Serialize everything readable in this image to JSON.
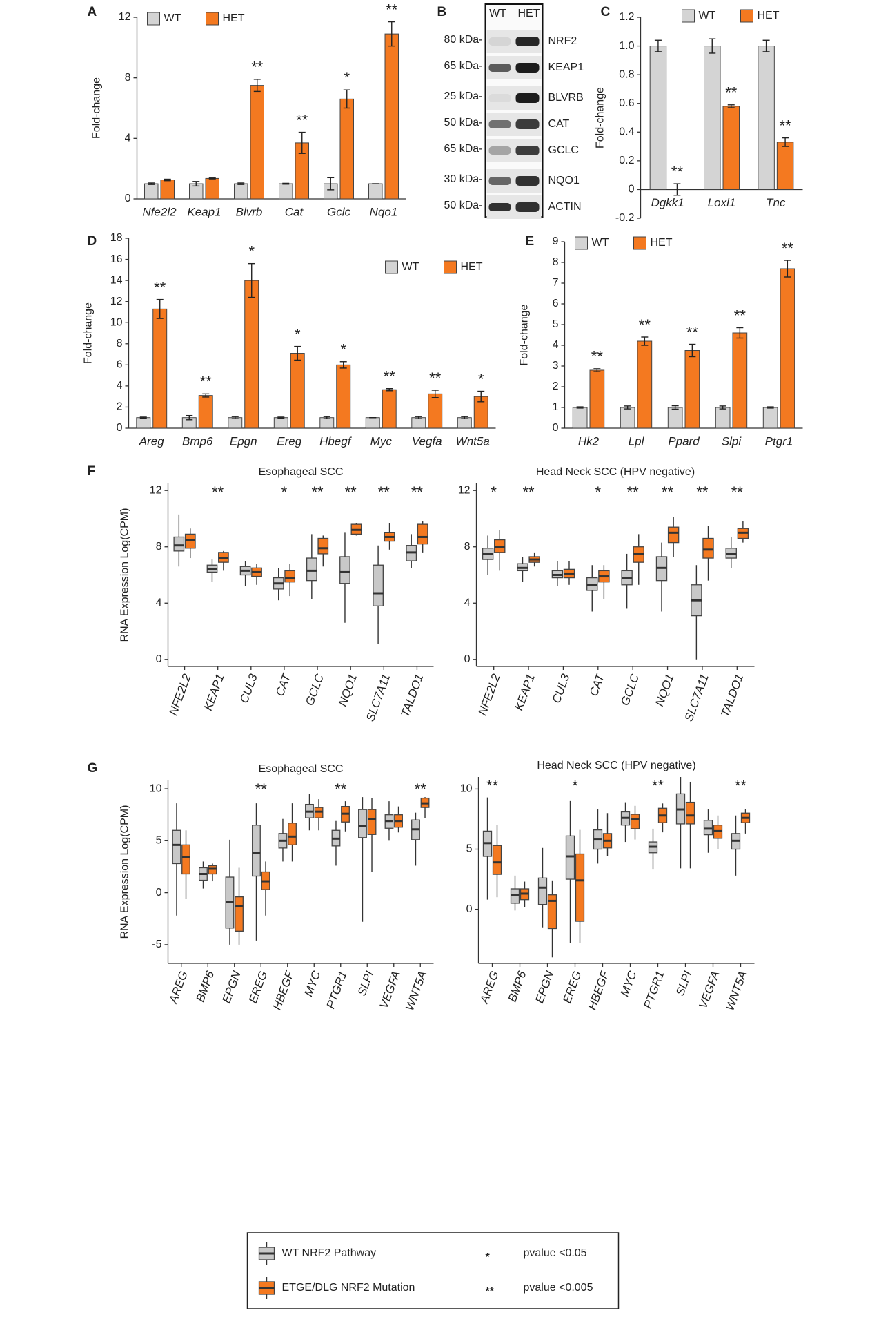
{
  "chart_data": [
    {
      "type": "bar",
      "panel": "A",
      "ylabel": "Fold-change",
      "legend": "top-left",
      "categories": [
        "Nfe2l2",
        "Keap1",
        "Blvrb",
        "Cat",
        "Gclc",
        "Nqo1"
      ],
      "series": [
        {
          "name": "WT",
          "color": "#d4d4d4",
          "values": [
            1,
            1,
            1,
            1,
            1,
            1
          ],
          "errors": [
            0.05,
            0.15,
            0.05,
            0.03,
            0.4,
            0
          ]
        },
        {
          "name": "HET",
          "color": "#f47920",
          "values": [
            1.25,
            1.35,
            7.5,
            3.7,
            6.6,
            10.9
          ],
          "errors": [
            0.05,
            0.03,
            0.4,
            0.7,
            0.6,
            0.8
          ]
        }
      ],
      "annotations": [
        null,
        null,
        "**",
        "**",
        "*",
        "**"
      ],
      "ylim": [
        0,
        12
      ],
      "yticks": [
        0,
        4,
        8,
        12
      ]
    },
    {
      "type": "bar",
      "panel": "C",
      "ylabel": "Fold-change",
      "legend": "top",
      "categories": [
        "Dgkk1",
        "Loxl1",
        "Tnc"
      ],
      "series": [
        {
          "name": "WT",
          "color": "#d4d4d4",
          "values": [
            1,
            1,
            1
          ],
          "errors": [
            0.04,
            0.05,
            0.04
          ]
        },
        {
          "name": "HET",
          "color": "#f47920",
          "values": [
            0,
            0.58,
            0.33
          ],
          "errors": [
            0.04,
            0.01,
            0.03
          ]
        }
      ],
      "annotations": [
        "**",
        "**",
        "**"
      ],
      "ylim": [
        -0.2,
        1.2
      ],
      "yticks": [
        -0.2,
        0,
        0.2,
        0.4,
        0.6,
        0.8,
        {
          "value": 1,
          "label": "1.0"
        },
        1.2
      ]
    },
    {
      "type": "bar",
      "panel": "D",
      "ylabel": "Fold-change",
      "legend": "top-right",
      "categories": [
        "Areg",
        "Bmp6",
        "Epgn",
        "Ereg",
        "Hbegf",
        "Myc",
        "Vegfa",
        "Wnt5a"
      ],
      "series": [
        {
          "name": "WT",
          "color": "#d4d4d4",
          "values": [
            1,
            1,
            1,
            1,
            1,
            1,
            1,
            1
          ],
          "errors": [
            0.05,
            0.2,
            0.1,
            0.05,
            0.1,
            0,
            0.1,
            0.1
          ]
        },
        {
          "name": "HET",
          "color": "#f47920",
          "values": [
            11.3,
            3.1,
            14,
            7.1,
            6,
            3.65,
            3.25,
            3
          ],
          "errors": [
            0.9,
            0.15,
            1.6,
            0.65,
            0.3,
            0.1,
            0.35,
            0.5
          ]
        }
      ],
      "annotations": [
        "**",
        "**",
        "*",
        "*",
        "*",
        "**",
        "**",
        "*"
      ],
      "ylim": [
        0,
        18
      ],
      "yticks": [
        0,
        2,
        4,
        6,
        8,
        10,
        12,
        14,
        16,
        18
      ]
    },
    {
      "type": "bar",
      "panel": "E",
      "ylabel": "Fold-change",
      "legend": "top-left",
      "categories": [
        "Hk2",
        "Lpl",
        "Ppard",
        "Slpi",
        "Ptgr1"
      ],
      "series": [
        {
          "name": "WT",
          "color": "#d4d4d4",
          "values": [
            1,
            1,
            1,
            1,
            1
          ],
          "errors": [
            0.03,
            0.07,
            0.08,
            0.07,
            0.03
          ]
        },
        {
          "name": "HET",
          "color": "#f47920",
          "values": [
            2.8,
            4.2,
            3.75,
            4.6,
            7.7
          ],
          "errors": [
            0.07,
            0.2,
            0.3,
            0.25,
            0.4
          ]
        }
      ],
      "annotations": [
        "**",
        "**",
        "**",
        "**",
        "**"
      ],
      "ylim": [
        0,
        9
      ],
      "yticks": [
        0,
        1,
        2,
        3,
        4,
        5,
        6,
        7,
        8,
        9
      ]
    },
    {
      "type": "box",
      "panel": "F",
      "title": "Esophageal SCC",
      "ylabel": "RNA Expression Log(CPM)",
      "categories": [
        "NFE2L2",
        "KEAP1",
        "CUL3",
        "CAT",
        "GCLC",
        "NQO1",
        "SLC7A11",
        "TALDO1"
      ],
      "series": [
        {
          "color": "#c8c8c8",
          "min": [
            6.6,
            5.5,
            5.2,
            4.2,
            4.3,
            2.6,
            1.1,
            6.5
          ],
          "q1": [
            7.7,
            6.2,
            6.0,
            5.0,
            5.6,
            5.4,
            3.8,
            7.0
          ],
          "median": [
            8.1,
            6.4,
            6.3,
            5.4,
            6.3,
            6.2,
            4.7,
            7.6
          ],
          "q3": [
            8.7,
            6.7,
            6.6,
            5.8,
            7.2,
            7.3,
            6.7,
            8.1
          ],
          "max": [
            10.3,
            7.1,
            7.0,
            6.5,
            8.9,
            9.0,
            8.1,
            8.9
          ]
        },
        {
          "color": "#f47920",
          "min": [
            7.2,
            6.3,
            5.3,
            4.5,
            6.6,
            8.8,
            7.8,
            7.6
          ],
          "q1": [
            7.9,
            6.9,
            5.9,
            5.5,
            7.5,
            8.9,
            8.4,
            8.2
          ],
          "median": [
            8.5,
            7.2,
            6.2,
            5.8,
            7.9,
            9.2,
            8.7,
            8.7
          ],
          "q3": [
            8.9,
            7.6,
            6.5,
            6.3,
            8.6,
            9.6,
            9.0,
            9.6
          ],
          "max": [
            9.3,
            7.7,
            6.8,
            6.8,
            8.8,
            9.7,
            9.7,
            9.8
          ]
        }
      ],
      "annotations": [
        null,
        "**",
        null,
        "*",
        "**",
        "**",
        "**",
        "**"
      ],
      "ylim": [
        -0.5,
        12.5
      ],
      "yticks": [
        0,
        4,
        8,
        12
      ]
    },
    {
      "type": "box",
      "title": "Head Neck SCC (HPV negative)",
      "categories": [
        "NFE2L2",
        "KEAP1",
        "CUL3",
        "CAT",
        "GCLC",
        "NQO1",
        "SLC7A11",
        "TALDO1"
      ],
      "series": [
        {
          "color": "#c8c8c8",
          "min": [
            6.0,
            5.5,
            5.2,
            3.4,
            3.6,
            3.4,
            0.0,
            6.5
          ],
          "q1": [
            7.1,
            6.3,
            5.8,
            4.9,
            5.3,
            5.6,
            3.1,
            7.2
          ],
          "median": [
            7.5,
            6.5,
            6.0,
            5.3,
            5.8,
            6.5,
            4.2,
            7.5
          ],
          "q3": [
            7.9,
            6.8,
            6.3,
            5.8,
            6.3,
            7.3,
            5.3,
            7.9
          ],
          "max": [
            8.8,
            7.3,
            7.0,
            6.7,
            7.5,
            8.3,
            6.7,
            8.7
          ]
        },
        {
          "color": "#f47920",
          "min": [
            6.3,
            6.6,
            5.3,
            4.3,
            5.3,
            7.3,
            5.6,
            8.3
          ],
          "q1": [
            7.6,
            6.9,
            5.8,
            5.5,
            6.9,
            8.3,
            7.2,
            8.6
          ],
          "median": [
            8.0,
            7.1,
            6.1,
            5.9,
            7.5,
            9.0,
            7.8,
            9.0
          ],
          "q3": [
            8.5,
            7.3,
            6.4,
            6.3,
            8.0,
            9.4,
            8.6,
            9.3
          ],
          "max": [
            9.2,
            7.6,
            7.0,
            6.7,
            8.9,
            10.1,
            9.5,
            9.8
          ]
        }
      ],
      "annotations": [
        "*",
        "**",
        null,
        "*",
        "**",
        "**",
        "**",
        "**"
      ],
      "ylim": [
        -0.5,
        12.5
      ],
      "yticks": [
        0,
        4,
        8,
        12
      ]
    },
    {
      "type": "box",
      "panel": "G",
      "title": "Esophageal SCC",
      "ylabel": "RNA Expression Log(CPM)",
      "categories": [
        "AREG",
        "BMP6",
        "EPGN",
        "EREG",
        "HBEGF",
        "MYC",
        "PTGR1",
        "SLPI",
        "VEGFA",
        "WNT5A"
      ],
      "series": [
        {
          "color": "#c8c8c8",
          "min": [
            -2.2,
            0.4,
            -5.0,
            -4.6,
            3.0,
            6.0,
            2.6,
            -2.8,
            5.0,
            2.6
          ],
          "q1": [
            2.8,
            1.2,
            -3.4,
            1.6,
            4.3,
            7.2,
            4.5,
            5.3,
            6.2,
            5.1
          ],
          "median": [
            4.6,
            1.8,
            -0.9,
            3.8,
            5.0,
            7.8,
            5.2,
            6.4,
            6.9,
            6.1
          ],
          "q3": [
            6.0,
            2.4,
            1.5,
            6.5,
            5.7,
            8.5,
            6.0,
            8.0,
            7.5,
            7.0
          ],
          "max": [
            8.6,
            3.0,
            5.1,
            8.6,
            7.1,
            9.5,
            6.9,
            9.2,
            8.8,
            7.7
          ]
        },
        {
          "color": "#f47920",
          "min": [
            -0.6,
            1.1,
            -5.0,
            -2.2,
            3.0,
            6.0,
            5.9,
            2.0,
            5.8,
            7.2
          ],
          "q1": [
            1.8,
            1.8,
            -3.7,
            0.3,
            4.6,
            7.2,
            6.8,
            5.6,
            6.3,
            8.2
          ],
          "median": [
            3.4,
            2.3,
            -1.3,
            1.1,
            5.4,
            7.8,
            7.6,
            7.1,
            6.9,
            8.6
          ],
          "q3": [
            4.6,
            2.6,
            -0.4,
            2.0,
            6.7,
            8.2,
            8.3,
            8.0,
            7.5,
            9.1
          ],
          "max": [
            6.0,
            2.8,
            2.4,
            3.0,
            8.6,
            9.0,
            8.8,
            9.1,
            8.3,
            9.2
          ]
        }
      ],
      "annotations": [
        null,
        null,
        null,
        "**",
        null,
        null,
        "**",
        null,
        null,
        "**"
      ],
      "ylim": [
        -6.8,
        10.8
      ],
      "yticks": [
        -5,
        0,
        5,
        10
      ]
    },
    {
      "type": "box",
      "title": "Head Neck SCC (HPV negative)",
      "categories": [
        "AREG",
        "BMP6",
        "EPGN",
        "EREG",
        "HBEGF",
        "MYC",
        "PTGR1",
        "SLPI",
        "VEGFA",
        "WNT5A"
      ],
      "series": [
        {
          "color": "#c8c8c8",
          "min": [
            0.8,
            -0.1,
            -1.5,
            -2.8,
            3.8,
            5.6,
            3.3,
            3.4,
            4.7,
            2.8
          ],
          "q1": [
            4.4,
            0.5,
            0.4,
            2.5,
            5.0,
            7.0,
            4.7,
            7.1,
            6.2,
            5.0
          ],
          "median": [
            5.5,
            1.2,
            1.8,
            4.4,
            5.8,
            7.6,
            5.2,
            8.3,
            6.7,
            5.7
          ],
          "q3": [
            6.5,
            1.7,
            2.6,
            6.1,
            6.6,
            8.1,
            5.6,
            9.6,
            7.4,
            6.3
          ],
          "max": [
            9.3,
            2.8,
            5.1,
            9.0,
            8.3,
            8.9,
            6.7,
            11.0,
            8.3,
            7.8
          ]
        },
        {
          "color": "#f47920",
          "min": [
            1.0,
            0.2,
            -4.0,
            -2.8,
            4.4,
            5.8,
            6.4,
            3.4,
            5.0,
            6.3
          ],
          "q1": [
            2.9,
            0.8,
            -1.6,
            -1.0,
            5.1,
            6.7,
            7.2,
            7.1,
            5.9,
            7.2
          ],
          "median": [
            3.9,
            1.3,
            0.7,
            2.4,
            5.7,
            7.5,
            7.8,
            7.8,
            6.5,
            7.6
          ],
          "q3": [
            5.3,
            1.7,
            1.2,
            4.6,
            6.3,
            7.9,
            8.4,
            8.9,
            7.0,
            8.0
          ],
          "max": [
            7.0,
            2.3,
            2.4,
            6.6,
            8.0,
            8.6,
            8.8,
            10.6,
            7.8,
            8.3
          ]
        }
      ],
      "annotations": [
        "**",
        null,
        null,
        "*",
        null,
        null,
        "**",
        null,
        null,
        "**"
      ],
      "ylim": [
        -4.5,
        11
      ],
      "yticks": [
        0,
        5,
        10
      ]
    }
  ],
  "blot": {
    "panel": "B",
    "lanes": [
      "WT",
      "HET"
    ],
    "rows": [
      {
        "protein": "NRF2",
        "marker": "80 kDa-"
      },
      {
        "protein": "KEAP1",
        "marker": "65 kDa-"
      },
      {
        "protein": "BLVRB",
        "marker": "25 kDa-"
      },
      {
        "protein": "CAT",
        "marker": "50 kDa-"
      },
      {
        "protein": "GCLC",
        "marker": "65 kDa-"
      },
      {
        "protein": "NQO1",
        "marker": "30 kDa-"
      },
      {
        "protein": "ACTIN",
        "marker": "50 kDa-"
      }
    ]
  },
  "legend": {
    "items": [
      {
        "name": "WT NRF2 Pathway",
        "color": "#c8c8c8"
      },
      {
        "name": "ETGE/DLG NRF2 Mutation",
        "color": "#f47920"
      }
    ],
    "notes": [
      {
        "symbol": "*",
        "text": "pvalue <0.05"
      },
      {
        "symbol": "**",
        "text": "pvalue <0.005"
      }
    ]
  }
}
